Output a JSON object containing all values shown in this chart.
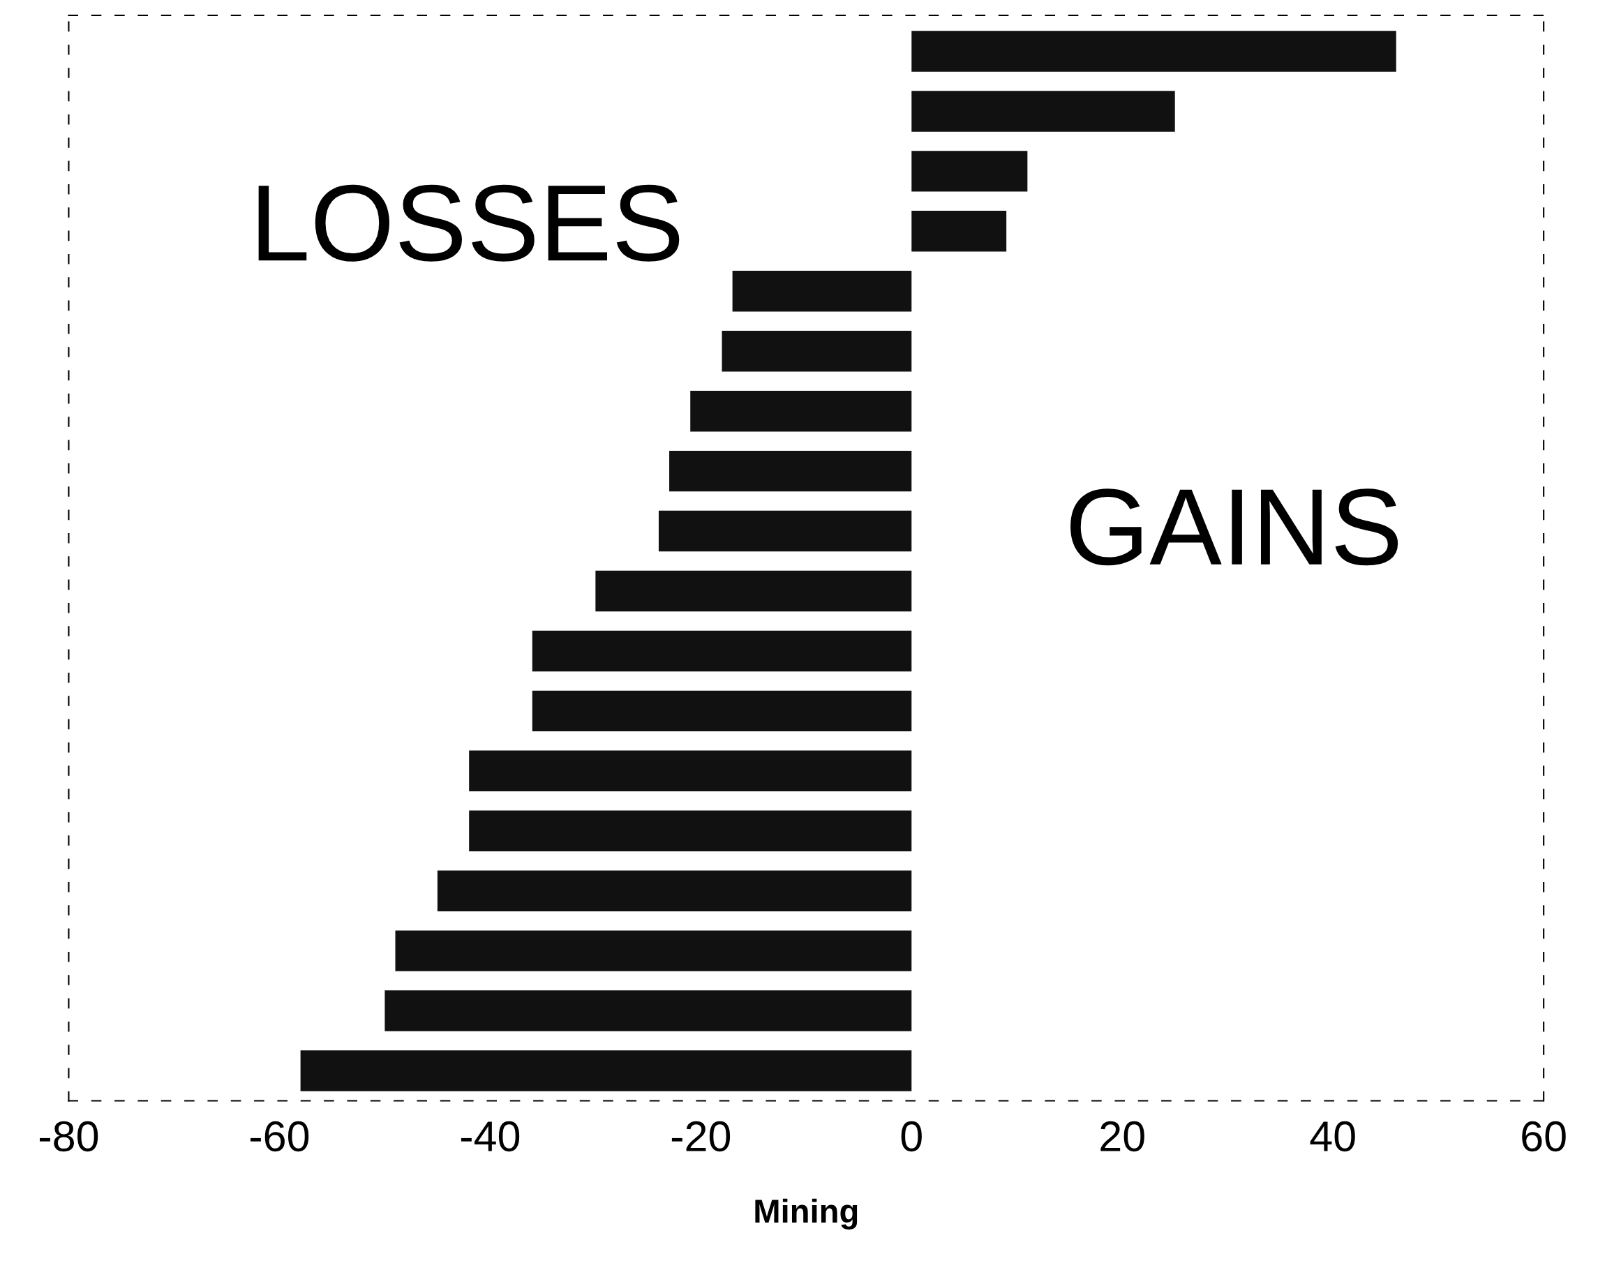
{
  "chart_data": {
    "type": "bar",
    "orientation": "horizontal",
    "xlabel": "Mining",
    "categories": [
      null,
      null,
      null,
      null,
      null,
      null,
      null,
      null,
      null,
      null,
      null,
      null,
      null,
      null,
      null,
      null,
      null,
      null
    ],
    "values": [
      46,
      25,
      11,
      9,
      -17,
      -18,
      -21,
      -23,
      -24,
      -30,
      -36,
      -36,
      -42,
      -42,
      -45,
      -49,
      -50,
      -58
    ],
    "color": "#111111",
    "xlim": [
      -80,
      60
    ],
    "xticks": [
      -80,
      -60,
      -40,
      -20,
      0,
      20,
      40,
      60
    ],
    "annotations": [
      "LOSSES",
      "GAINS"
    ],
    "grid": false,
    "tick_labels": "x"
  }
}
